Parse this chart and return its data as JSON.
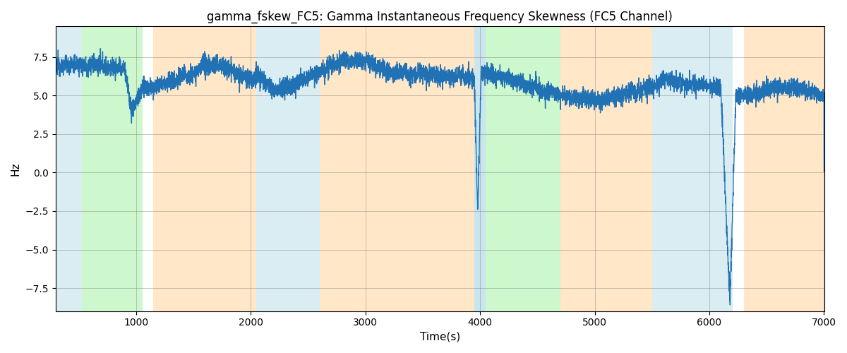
{
  "title": "gamma_fskew_FC5: Gamma Instantaneous Frequency Skewness (FC5 Channel)",
  "xlabel": "Time(s)",
  "ylabel": "Hz",
  "xlim": [
    300,
    7000
  ],
  "ylim": [
    -9,
    9.5
  ],
  "yticks": [
    -7.5,
    -5.0,
    -2.5,
    0.0,
    2.5,
    5.0,
    7.5
  ],
  "xticks": [
    1000,
    2000,
    3000,
    4000,
    5000,
    6000,
    7000
  ],
  "line_color": "#2171b5",
  "line_width": 1.0,
  "background_regions": [
    {
      "xmin": 300,
      "xmax": 530,
      "color": "#add8e6",
      "alpha": 0.45
    },
    {
      "xmin": 530,
      "xmax": 1060,
      "color": "#90ee90",
      "alpha": 0.45
    },
    {
      "xmin": 1150,
      "xmax": 2050,
      "color": "#ffd59a",
      "alpha": 0.55
    },
    {
      "xmin": 2050,
      "xmax": 2600,
      "color": "#add8e6",
      "alpha": 0.45
    },
    {
      "xmin": 2600,
      "xmax": 3100,
      "color": "#ffd59a",
      "alpha": 0.55
    },
    {
      "xmin": 3100,
      "xmax": 3950,
      "color": "#ffd59a",
      "alpha": 0.55
    },
    {
      "xmin": 3950,
      "xmax": 4050,
      "color": "#add8e6",
      "alpha": 0.65
    },
    {
      "xmin": 4050,
      "xmax": 4700,
      "color": "#90ee90",
      "alpha": 0.45
    },
    {
      "xmin": 4700,
      "xmax": 5500,
      "color": "#ffd59a",
      "alpha": 0.55
    },
    {
      "xmin": 5500,
      "xmax": 6200,
      "color": "#add8e6",
      "alpha": 0.45
    },
    {
      "xmin": 6300,
      "xmax": 7000,
      "color": "#ffd59a",
      "alpha": 0.55
    }
  ]
}
